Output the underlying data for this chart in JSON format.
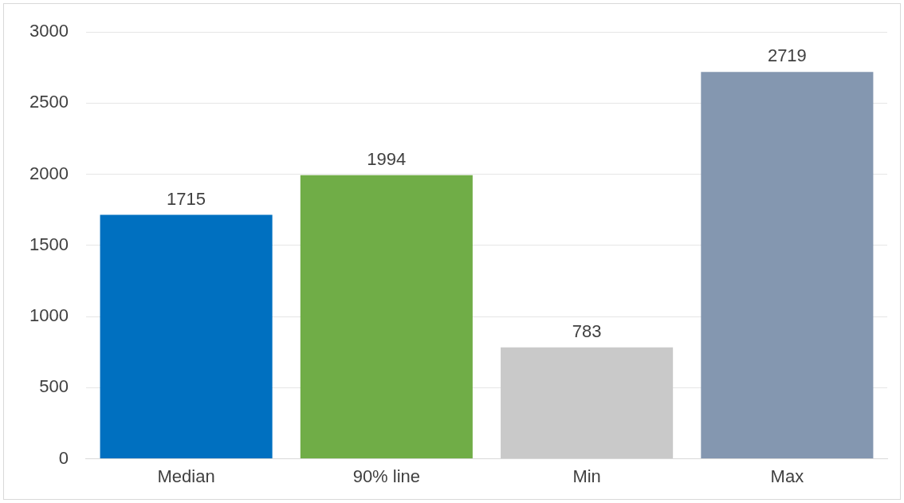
{
  "chart_data": {
    "type": "bar",
    "categories": [
      "Median",
      "90% line",
      "Min",
      "Max"
    ],
    "values": [
      1715,
      1994,
      783,
      2719
    ],
    "colors": [
      "#0070c0",
      "#70ad47",
      "#c9c9c9",
      "#8497b0"
    ],
    "ylim": [
      0,
      3000
    ],
    "yticks": [
      0,
      500,
      1000,
      1500,
      2000,
      2500,
      3000
    ],
    "grid": "y",
    "data_labels": true,
    "legend": false
  }
}
